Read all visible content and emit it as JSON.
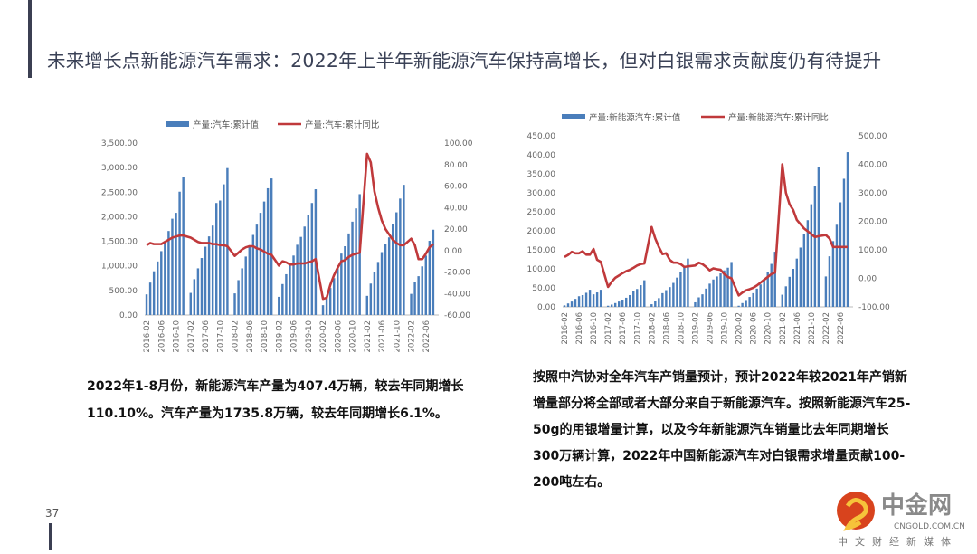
{
  "title": "未来增长点新能源汽车需求：2022年上半年新能源汽车保持高增长，但对白银需求贡献度仍有待提升",
  "page_number": "37",
  "paragraph_left": "2022年1-8月份，新能源汽车产量为407.4万辆，较去年同期增长110.10%。汽车产量为1735.8万辆，较去年同期增长6.1%。",
  "paragraph_right": "按照中汽协对全年汽车产销量预计，预计2022年较2021年产销新增量部分将全部或者大部分来自于新能源汽车。按照新能源汽车25-50g的用银增量计算，以及今年新能源汽车销量比去年同期增长300万辆计算，2022年中国新能源汽车对白银需求增量贡献100-200吨左右。",
  "logo": {
    "name": "中金网",
    "domain": "CNGOLD.COM.CN",
    "tagline": "中文财经新媒体"
  },
  "colors": {
    "bar": "#4a7ebb",
    "line": "#c0393b",
    "title": "#3b4257"
  },
  "chart_data": [
    {
      "type": "bar+line",
      "title": "",
      "legend": [
        "产量:汽车:累计值",
        "产量:汽车:累计同比"
      ],
      "start": "2016-02",
      "xticks": [
        "2016-02",
        "2016-06",
        "2016-10",
        "2017-02",
        "2017-06",
        "2017-10",
        "2018-02",
        "2018-06",
        "2018-10",
        "2019-02",
        "2019-06",
        "2019-10",
        "2020-02",
        "2020-06",
        "2020-10",
        "2021-02",
        "2021-06",
        "2021-10",
        "2022-02",
        "2022-06"
      ],
      "yleft": {
        "min": 0,
        "max": 3500,
        "step": 500
      },
      "yright": {
        "min": -60,
        "max": 100,
        "step": 20
      },
      "bars": [
        [
          420,
          660,
          890,
          1090,
          1300,
          1500,
          1710,
          1960,
          2080,
          2510,
          2810
        ],
        [
          450,
          730,
          950,
          1160,
          1390,
          1600,
          1820,
          2280,
          2330,
          2660,
          2990
        ],
        [
          440,
          710,
          950,
          1190,
          1420,
          1630,
          1840,
          2080,
          2310,
          2580,
          2780
        ],
        [
          370,
          630,
          830,
          1020,
          1210,
          1430,
          1590,
          1800,
          2030,
          2280,
          2560
        ],
        [
          200,
          340,
          550,
          750,
          1010,
          1250,
          1400,
          1660,
          1900,
          2170,
          2460
        ],
        [
          390,
          640,
          870,
          1080,
          1280,
          1450,
          1580,
          1850,
          2090,
          2370,
          2650
        ],
        [
          430,
          670,
          790,
          990,
          1210,
          1510,
          1736
        ]
      ],
      "line": [
        [
          5,
          7,
          6,
          6,
          6,
          8,
          10,
          12,
          13,
          14,
          14
        ],
        [
          12,
          10,
          8,
          7,
          7,
          7,
          6,
          6,
          5,
          5,
          4
        ],
        [
          -5,
          -2,
          1,
          3,
          4,
          4,
          2,
          1,
          -1,
          -3,
          -4
        ],
        [
          -14,
          -10,
          -11,
          -13,
          -13,
          -12,
          -12,
          -12,
          -11,
          -10,
          -8
        ],
        [
          -45,
          -44,
          -32,
          -23,
          -16,
          -10,
          -9,
          -6,
          -4,
          -3,
          -2
        ],
        [
          90,
          82,
          55,
          40,
          28,
          20,
          15,
          10,
          7,
          5,
          5
        ],
        [
          11,
          5,
          -8,
          -8,
          -3,
          3,
          6
        ]
      ]
    },
    {
      "type": "bar+line",
      "title": "",
      "legend": [
        "产量:新能源汽车:累计值",
        "产量:新能源汽车:累计同比"
      ],
      "start": "2016-02",
      "xticks": [
        "2016-02",
        "2016-06",
        "2016-10",
        "2017-02",
        "2017-06",
        "2017-10",
        "2018-02",
        "2018-06",
        "2018-10",
        "2019-02",
        "2019-06",
        "2019-10",
        "2020-02",
        "2020-06",
        "2020-10",
        "2021-02",
        "2021-06",
        "2021-10",
        "2022-02",
        "2022-06"
      ],
      "yleft": {
        "min": 0,
        "max": 450,
        "step": 50
      },
      "yright": {
        "min": -100,
        "max": 500,
        "step": 100
      },
      "bars": [
        [
          4,
          9,
          14,
          21,
          28,
          31,
          37,
          45,
          33,
          38,
          45
        ],
        [
          3,
          6,
          10,
          14,
          19,
          24,
          31,
          41,
          47,
          57,
          70
        ],
        [
          7,
          15,
          23,
          36,
          44,
          52,
          63,
          77,
          91,
          106,
          127
        ],
        [
          12,
          25,
          33,
          48,
          61,
          72,
          80,
          88,
          96,
          103,
          118
        ],
        [
          3,
          10,
          18,
          26,
          36,
          48,
          59,
          72,
          91,
          113,
          145
        ],
        [
          32,
          54,
          79,
          100,
          127,
          156,
          191,
          228,
          270,
          318,
          367
        ],
        [
          80,
          133,
          173,
          216,
          275,
          337,
          407
        ]
      ],
      "line": [
        [
          75,
          82,
          93,
          88,
          88,
          95,
          83,
          83,
          103,
          65,
          58
        ],
        [
          -30,
          -12,
          2,
          10,
          18,
          25,
          30,
          37,
          45,
          50,
          52
        ],
        [
          180,
          140,
          110,
          85,
          88,
          65,
          55,
          55,
          50,
          40,
          42
        ],
        [
          45,
          55,
          50,
          40,
          28,
          35,
          32,
          30,
          15,
          5,
          0
        ],
        [
          -60,
          -50,
          -42,
          -38,
          -33,
          -25,
          -15,
          -5,
          5,
          15,
          20
        ],
        [
          400,
          300,
          260,
          240,
          205,
          190,
          175,
          165,
          155,
          145,
          148
        ],
        [
          152,
          140,
          110,
          110,
          110,
          110,
          110
        ]
      ]
    }
  ]
}
